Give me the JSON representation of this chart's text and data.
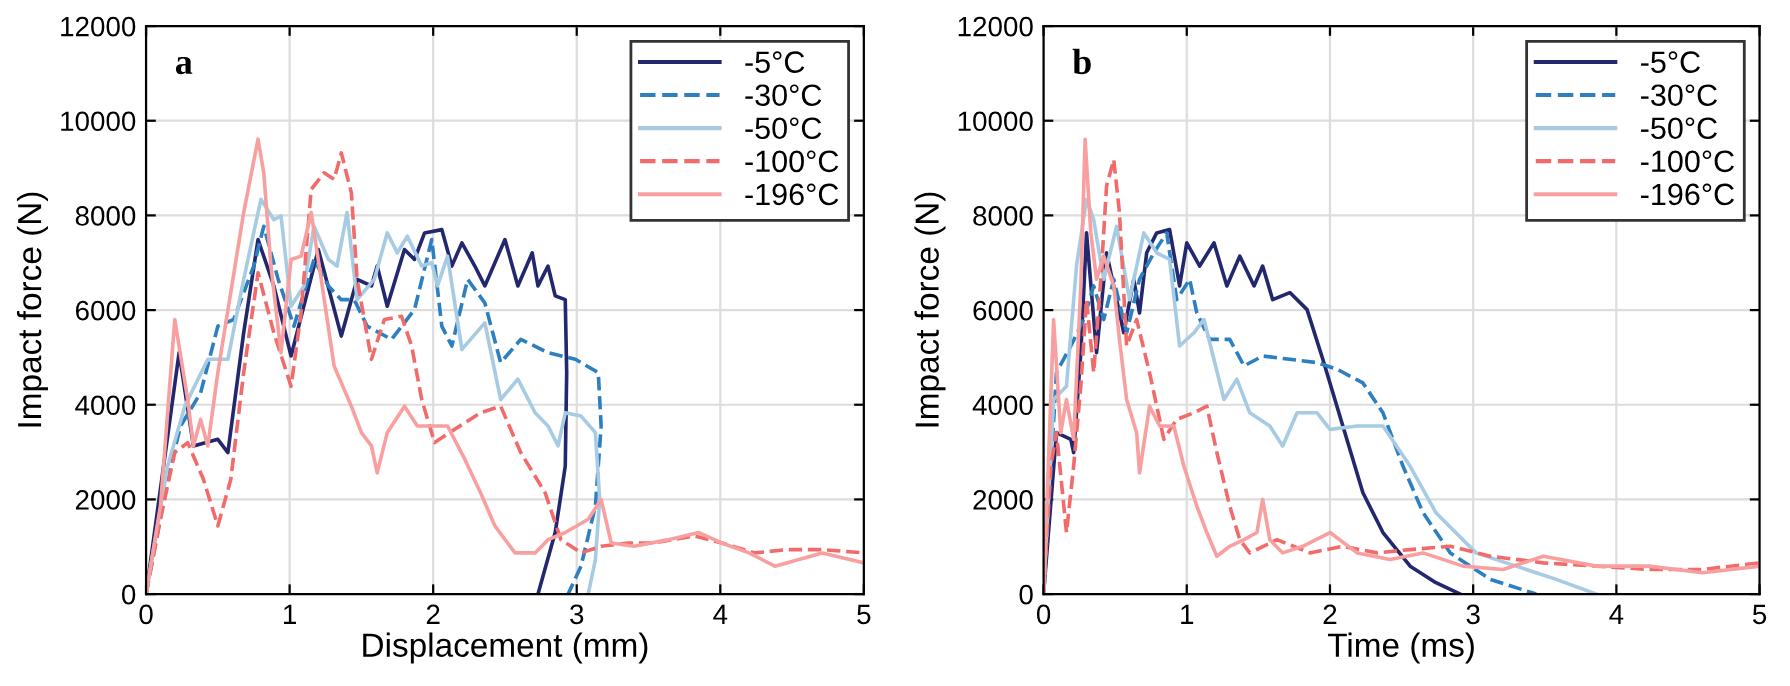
{
  "chart_data": [
    {
      "type": "line",
      "title": "a",
      "xlabel": "Displacement (mm)",
      "ylabel": "Impact force (N)",
      "xlim": [
        0,
        5
      ],
      "ylim": [
        0,
        12000
      ],
      "xticks": [
        0,
        1,
        2,
        3,
        4,
        5
      ],
      "yticks": [
        0,
        2000,
        4000,
        6000,
        8000,
        10000,
        12000
      ],
      "grid": true,
      "legend": "top right",
      "series": [
        {
          "name": "-5°C",
          "color": "#23276d",
          "line_style": "solid",
          "x": [
            0,
            0.23,
            0.33,
            0.5,
            0.57,
            0.68,
            0.78,
            0.89,
            1.01,
            1.2,
            1.36,
            1.47,
            1.57,
            1.61,
            1.68,
            1.8,
            1.87,
            1.94,
            2.06,
            2.13,
            2.2,
            2.29,
            2.36,
            2.5,
            2.59,
            2.69,
            2.73,
            2.8,
            2.85,
            2.92,
            2.93,
            2.92,
            2.85,
            2.73
          ],
          "values": [
            0,
            5100,
            3130,
            3270,
            2990,
            5520,
            7490,
            6510,
            5030,
            7280,
            5450,
            6650,
            6510,
            6930,
            6080,
            7280,
            7070,
            7630,
            7700,
            6930,
            7420,
            6930,
            6510,
            7490,
            6510,
            7210,
            6510,
            6930,
            6300,
            6220,
            4680,
            2700,
            1300,
            0
          ]
        },
        {
          "name": "-30°C",
          "color": "#2e7fbf",
          "line_style": "dashed",
          "x": [
            0,
            0.15,
            0.24,
            0.38,
            0.5,
            0.61,
            0.75,
            0.82,
            0.92,
            1.03,
            1.17,
            1.27,
            1.36,
            1.45,
            1.54,
            1.71,
            1.87,
            1.99,
            2.06,
            2.13,
            2.24,
            2.36,
            2.47,
            2.61,
            2.8,
            2.99,
            3.15,
            3.17,
            3.13,
            3.03,
            2.94
          ],
          "values": [
            0,
            2420,
            3550,
            4250,
            5660,
            5800,
            6930,
            7770,
            6650,
            5660,
            7070,
            6510,
            6220,
            6220,
            5660,
            5380,
            6010,
            7490,
            5660,
            5240,
            6650,
            6150,
            4890,
            5380,
            5100,
            4960,
            4680,
            3550,
            1860,
            590,
            0
          ]
        },
        {
          "name": "-50°C",
          "color": "#a8cbe4",
          "line_style": "solid",
          "x": [
            0,
            0.15,
            0.27,
            0.43,
            0.57,
            0.68,
            0.8,
            0.89,
            0.94,
            1.01,
            1.1,
            1.17,
            1.27,
            1.33,
            1.4,
            1.47,
            1.59,
            1.68,
            1.75,
            1.82,
            1.92,
            1.99,
            2.03,
            2.1,
            2.2,
            2.36,
            2.47,
            2.59,
            2.71,
            2.8,
            2.87,
            2.92,
            3.03,
            3.13,
            3.16,
            3.13,
            3.08
          ],
          "values": [
            0,
            2700,
            3970,
            4960,
            4960,
            6650,
            8340,
            7910,
            7990,
            6080,
            6510,
            7770,
            7070,
            6930,
            8060,
            6220,
            6650,
            7630,
            7210,
            7560,
            6930,
            7000,
            6510,
            7140,
            5170,
            5730,
            4110,
            4540,
            3830,
            3550,
            3130,
            3830,
            3760,
            3410,
            2000,
            730,
            0
          ]
        },
        {
          "name": "-100°C",
          "color": "#f26b6b",
          "line_style": "dashed",
          "x": [
            0,
            0.1,
            0.2,
            0.29,
            0.4,
            0.5,
            0.59,
            0.68,
            0.78,
            0.89,
            1.01,
            1.08,
            1.15,
            1.24,
            1.31,
            1.36,
            1.43,
            1.47,
            1.57,
            1.66,
            1.78,
            1.85,
            1.92,
            2.01,
            2.15,
            2.33,
            2.47,
            2.61,
            2.78,
            2.89,
            3.03,
            3.17,
            3.36,
            3.54,
            3.82,
            4.01,
            4.24,
            4.47,
            4.71,
            5
          ],
          "values": [
            0,
            1580,
            2990,
            3200,
            2420,
            1440,
            2420,
            4680,
            6790,
            5520,
            4390,
            5940,
            8550,
            8900,
            8760,
            9320,
            8480,
            6650,
            4960,
            5800,
            5870,
            5240,
            4110,
            3200,
            3480,
            3830,
            3970,
            2990,
            2140,
            1150,
            870,
            1010,
            1080,
            1080,
            1230,
            1080,
            870,
            940,
            940,
            870
          ]
        },
        {
          "name": "-196°C",
          "color": "#f8a0a0",
          "line_style": "solid",
          "x": [
            0,
            0.1,
            0.2,
            0.29,
            0.33,
            0.38,
            0.43,
            0.5,
            0.59,
            0.68,
            0.78,
            0.82,
            0.87,
            0.94,
            1.01,
            1.08,
            1.15,
            1.22,
            1.31,
            1.43,
            1.5,
            1.57,
            1.61,
            1.68,
            1.8,
            1.89,
            2.01,
            2.1,
            2.22,
            2.33,
            2.43,
            2.57,
            2.71,
            2.8,
            2.92,
            3.08,
            3.17,
            3.24,
            3.4,
            3.64,
            3.85,
            4.01,
            4.2,
            4.38,
            4.71,
            5
          ],
          "values": [
            0,
            1860,
            5800,
            4110,
            3130,
            3690,
            3130,
            4680,
            6370,
            8060,
            9610,
            8900,
            6930,
            5100,
            7070,
            7140,
            8060,
            6650,
            4820,
            3970,
            3410,
            3130,
            2560,
            3410,
            3970,
            3550,
            3550,
            3550,
            2850,
            2140,
            1440,
            870,
            870,
            1150,
            1300,
            1580,
            2000,
            1080,
            1010,
            1150,
            1300,
            1080,
            870,
            590,
            870,
            660
          ]
        }
      ]
    },
    {
      "type": "line",
      "title": "b",
      "xlabel": "Time (ms)",
      "ylabel": "Impact force (N)",
      "xlim": [
        0,
        5
      ],
      "ylim": [
        0,
        12000
      ],
      "xticks": [
        0,
        1,
        2,
        3,
        4,
        5
      ],
      "yticks": [
        0,
        2000,
        4000,
        6000,
        8000,
        10000,
        12000
      ],
      "grid": true,
      "legend": "top right",
      "series": [
        {
          "name": "-5°C",
          "color": "#23276d",
          "line_style": "solid",
          "x": [
            0,
            0.09,
            0.19,
            0.21,
            0.26,
            0.3,
            0.37,
            0.44,
            0.51,
            0.56,
            0.63,
            0.67,
            0.72,
            0.79,
            0.88,
            0.95,
            1,
            1.09,
            1.19,
            1.28,
            1.37,
            1.47,
            1.53,
            1.6,
            1.72,
            1.84,
            1.95,
            2.09,
            2.23,
            2.37,
            2.56,
            2.74,
            2.91
          ],
          "values": [
            0,
            3410,
            3270,
            2990,
            5100,
            7630,
            5100,
            7210,
            6220,
            5520,
            6650,
            5940,
            7210,
            7630,
            7700,
            6510,
            7420,
            6930,
            7420,
            6510,
            7140,
            6510,
            6930,
            6220,
            6370,
            6010,
            4960,
            3550,
            2140,
            1300,
            590,
            240,
            0
          ]
        },
        {
          "name": "-30°C",
          "color": "#2e7fbf",
          "line_style": "dashed",
          "x": [
            0,
            0.09,
            0.19,
            0.28,
            0.35,
            0.42,
            0.49,
            0.58,
            0.67,
            0.77,
            0.86,
            0.93,
            1.02,
            1.07,
            1.16,
            1.3,
            1.4,
            1.53,
            1.72,
            1.91,
            2.05,
            2.23,
            2.37,
            2.51,
            2.65,
            2.84,
            3.12,
            3.44
          ],
          "values": [
            0,
            4680,
            5240,
            5800,
            6510,
            5800,
            6650,
            5520,
            6650,
            7210,
            7630,
            6220,
            6650,
            5940,
            5380,
            5380,
            4820,
            5030,
            4960,
            4890,
            4750,
            4460,
            3830,
            2700,
            1720,
            870,
            310,
            0
          ]
        },
        {
          "name": "-50°C",
          "color": "#a8cbe4",
          "line_style": "solid",
          "x": [
            0,
            0.07,
            0.16,
            0.23,
            0.3,
            0.35,
            0.42,
            0.51,
            0.6,
            0.7,
            0.79,
            0.88,
            0.95,
            1.05,
            1.12,
            1.26,
            1.35,
            1.44,
            1.58,
            1.67,
            1.77,
            1.91,
            2,
            2.19,
            2.37,
            2.56,
            2.74,
            3.02,
            3.3,
            3.58,
            3.86
          ],
          "values": [
            0,
            4110,
            4390,
            6930,
            8340,
            7910,
            6650,
            7770,
            6220,
            7630,
            7210,
            7070,
            5240,
            5520,
            5800,
            4110,
            4540,
            3830,
            3550,
            3130,
            3830,
            3830,
            3480,
            3550,
            3550,
            2700,
            1720,
            870,
            590,
            310,
            0
          ]
        },
        {
          "name": "-100°C",
          "color": "#f26b6b",
          "line_style": "dashed",
          "x": [
            0,
            0.05,
            0.09,
            0.16,
            0.21,
            0.26,
            0.3,
            0.35,
            0.4,
            0.44,
            0.49,
            0.53,
            0.58,
            0.65,
            0.74,
            0.84,
            0.93,
            1.05,
            1.14,
            1.21,
            1.3,
            1.37,
            1.44,
            1.63,
            1.86,
            2.09,
            2.33,
            2.56,
            2.84,
            3.12,
            3.49,
            3.86,
            4.23,
            4.6,
            5
          ],
          "values": [
            0,
            2700,
            3410,
            1300,
            2700,
            4390,
            6220,
            4680,
            6650,
            8620,
            9180,
            8060,
            5240,
            5800,
            4680,
            3270,
            3690,
            3830,
            3970,
            2990,
            1860,
            1150,
            870,
            1150,
            870,
            1010,
            870,
            940,
            1010,
            800,
            660,
            590,
            520,
            520,
            660
          ]
        },
        {
          "name": "-196°C",
          "color": "#f8a0a0",
          "line_style": "solid",
          "x": [
            0,
            0.05,
            0.07,
            0.12,
            0.16,
            0.21,
            0.26,
            0.29,
            0.33,
            0.37,
            0.42,
            0.49,
            0.53,
            0.58,
            0.65,
            0.67,
            0.74,
            0.81,
            0.91,
            0.98,
            1.07,
            1.14,
            1.21,
            1.3,
            1.4,
            1.49,
            1.53,
            1.58,
            1.67,
            1.81,
            2,
            2.19,
            2.42,
            2.65,
            2.93,
            3.21,
            3.49,
            3.86,
            4.23,
            4.6,
            5
          ],
          "values": [
            0,
            4110,
            5800,
            3410,
            4110,
            3270,
            6510,
            9610,
            7630,
            6650,
            7140,
            6510,
            5380,
            4110,
            3410,
            2560,
            3970,
            3550,
            3550,
            2700,
            1860,
            1300,
            800,
            1010,
            1150,
            1300,
            2000,
            1150,
            870,
            1010,
            1300,
            870,
            730,
            870,
            590,
            520,
            800,
            590,
            590,
            450,
            590
          ]
        }
      ]
    }
  ]
}
